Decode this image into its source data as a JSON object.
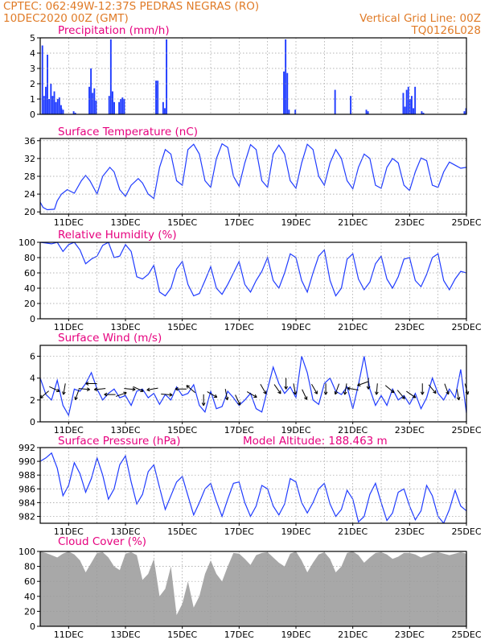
{
  "header": {
    "line1_left": "CPTEC:   062:49W-12:37S   PEDRAS NEGRAS (RO)",
    "line2_left": "10DEC2020 00Z (GMT)",
    "line2_right": "Vertical Grid Line: 00Z",
    "line3_right": "TQ0126L028"
  },
  "colors": {
    "header_text": "#e07b27",
    "panel_title": "#e6007e",
    "series": "#1f3bff",
    "cloud": "#a8a8a8",
    "grid": "#9a9a9a",
    "wind_arrow": "#000000"
  },
  "chart_data": [
    {
      "type": "bar",
      "title": "Precipitation (mm/h)",
      "ylim": [
        0,
        5
      ],
      "yticks": [
        "0",
        "1",
        "2",
        "3",
        "4",
        "5"
      ],
      "grid": true,
      "x_dates": [
        "11DEC",
        "13DEC",
        "15DEC",
        "17DEC",
        "19DEC",
        "21DEC",
        "23DEC",
        "25DEC"
      ],
      "x_dates_shown": false,
      "bursts": [
        {
          "day": 10.05,
          "values": [
            4.5,
            1.2,
            1.8,
            3.9,
            1.0
          ]
        },
        {
          "day": 10.35,
          "values": [
            2.0,
            1.2,
            1.5,
            0.8,
            1.0,
            1.1,
            0.6
          ]
        },
        {
          "day": 10.72,
          "values": [
            0.4,
            0.3
          ]
        },
        {
          "day": 11.15,
          "values": [
            0.2,
            0.1
          ]
        },
        {
          "day": 11.7,
          "values": [
            1.8,
            3.0,
            1.4,
            1.7,
            0.9
          ]
        },
        {
          "day": 12.4,
          "values": [
            1.2,
            4.9,
            1.5,
            0.8
          ]
        },
        {
          "day": 12.75,
          "values": [
            0.8,
            1.0,
            1.1,
            1.0
          ]
        },
        {
          "day": 14.05,
          "values": [
            2.2,
            2.2
          ]
        },
        {
          "day": 14.3,
          "values": [
            0.8,
            0.4,
            4.9
          ]
        },
        {
          "day": 18.55,
          "values": [
            2.8,
            4.9,
            2.7,
            0.3
          ]
        },
        {
          "day": 18.95,
          "values": [
            0.3
          ]
        },
        {
          "day": 20.35,
          "values": [
            1.6
          ]
        },
        {
          "day": 20.9,
          "values": [
            1.2
          ]
        },
        {
          "day": 21.45,
          "values": [
            0.3,
            0.2
          ]
        },
        {
          "day": 22.75,
          "values": [
            1.4,
            0.5,
            1.6,
            1.8,
            1.0,
            1.2,
            0.4,
            1.8
          ]
        },
        {
          "day": 23.4,
          "values": [
            0.2,
            0.1
          ]
        },
        {
          "day": 24.9,
          "values": [
            0.2,
            0.4
          ]
        }
      ]
    },
    {
      "type": "line",
      "title": "Surface Temperature (nC)",
      "ylim": [
        19.5,
        36.5
      ],
      "yticks": [
        "20",
        "24",
        "28",
        "32",
        "36"
      ],
      "grid": true,
      "x_dates": [
        "11DEC",
        "13DEC",
        "15DEC",
        "17DEC",
        "19DEC",
        "21DEC",
        "23DEC",
        "25DEC"
      ],
      "x_dates_shown": true,
      "x": [
        10.0,
        10.1,
        10.25,
        10.5,
        10.6,
        10.75,
        10.95,
        11.2,
        11.45,
        11.6,
        11.75,
        12.0,
        12.2,
        12.45,
        12.6,
        12.8,
        13.0,
        13.2,
        13.45,
        13.6,
        13.8,
        14.0,
        14.2,
        14.4,
        14.6,
        14.8,
        15.0,
        15.2,
        15.4,
        15.6,
        15.8,
        16.0,
        16.2,
        16.4,
        16.6,
        16.8,
        17.0,
        17.2,
        17.4,
        17.6,
        17.8,
        18.0,
        18.2,
        18.4,
        18.6,
        18.8,
        19.0,
        19.2,
        19.4,
        19.6,
        19.8,
        20.0,
        20.2,
        20.4,
        20.6,
        20.8,
        21.0,
        21.2,
        21.4,
        21.6,
        21.8,
        22.0,
        22.2,
        22.4,
        22.6,
        22.8,
        23.0,
        23.2,
        23.4,
        23.6,
        23.8,
        24.0,
        24.2,
        24.4,
        24.6,
        24.8,
        25.0
      ],
      "y": [
        22.2,
        21.0,
        20.5,
        20.6,
        22.5,
        24.0,
        25.0,
        24.2,
        27.0,
        28.2,
        27.0,
        24.0,
        28.0,
        30.0,
        29.0,
        25.0,
        23.5,
        26.0,
        27.5,
        26.5,
        24.0,
        23.0,
        30.0,
        34.0,
        33.0,
        27.0,
        26.0,
        34.0,
        35.2,
        33.0,
        27.0,
        25.5,
        32.0,
        35.3,
        34.5,
        28.0,
        25.8,
        31.0,
        35.1,
        34.0,
        27.0,
        25.5,
        33.0,
        35.0,
        33.0,
        27.0,
        25.3,
        31.0,
        35.2,
        34.0,
        28.0,
        26.0,
        31.0,
        34.0,
        32.0,
        27.0,
        25.2,
        30.0,
        33.0,
        32.0,
        26.0,
        25.3,
        30.0,
        32.0,
        31.0,
        26.0,
        24.8,
        29.0,
        32.1,
        31.5,
        26.0,
        25.5,
        29.0,
        31.2,
        30.5,
        29.8,
        30.0
      ]
    },
    {
      "type": "line",
      "title": "Relative Humidity (%)",
      "ylim": [
        0,
        100
      ],
      "yticks": [
        "0",
        "20",
        "40",
        "60",
        "80",
        "100"
      ],
      "grid": true,
      "x_dates": [
        "11DEC",
        "13DEC",
        "15DEC",
        "17DEC",
        "19DEC",
        "21DEC",
        "23DEC",
        "25DEC"
      ],
      "x_dates_shown": true,
      "x": [
        10.0,
        10.2,
        10.4,
        10.6,
        10.8,
        11.0,
        11.2,
        11.4,
        11.6,
        11.8,
        12.0,
        12.2,
        12.4,
        12.6,
        12.8,
        13.0,
        13.2,
        13.4,
        13.6,
        13.8,
        14.0,
        14.2,
        14.4,
        14.6,
        14.8,
        15.0,
        15.2,
        15.4,
        15.6,
        15.8,
        16.0,
        16.2,
        16.4,
        16.6,
        16.8,
        17.0,
        17.2,
        17.4,
        17.6,
        17.8,
        18.0,
        18.2,
        18.4,
        18.6,
        18.8,
        19.0,
        19.2,
        19.4,
        19.6,
        19.8,
        20.0,
        20.2,
        20.4,
        20.6,
        20.8,
        21.0,
        21.2,
        21.4,
        21.6,
        21.8,
        22.0,
        22.2,
        22.4,
        22.6,
        22.8,
        23.0,
        23.2,
        23.4,
        23.6,
        23.8,
        24.0,
        24.2,
        24.4,
        24.6,
        24.8,
        25.0
      ],
      "y": [
        100,
        99,
        98,
        100,
        88,
        97,
        100,
        90,
        72,
        78,
        82,
        96,
        100,
        80,
        82,
        97,
        88,
        55,
        52,
        58,
        70,
        35,
        30,
        40,
        65,
        75,
        45,
        30,
        33,
        50,
        68,
        40,
        32,
        45,
        60,
        75,
        45,
        35,
        50,
        62,
        80,
        50,
        40,
        60,
        85,
        80,
        50,
        35,
        60,
        82,
        90,
        50,
        30,
        40,
        78,
        85,
        52,
        38,
        48,
        72,
        82,
        52,
        40,
        55,
        78,
        80,
        50,
        42,
        58,
        80,
        85,
        50,
        38,
        52,
        62,
        60
      ]
    },
    {
      "type": "line",
      "title": "Surface Wind (m/s)",
      "ylim": [
        0,
        7
      ],
      "yticks": [
        "0",
        "2",
        "4",
        "6"
      ],
      "grid": true,
      "x_dates": [
        "11DEC",
        "13DEC",
        "15DEC",
        "17DEC",
        "19DEC",
        "21DEC",
        "23DEC",
        "25DEC"
      ],
      "x_dates_shown": true,
      "x": [
        10.0,
        10.2,
        10.4,
        10.6,
        10.8,
        11.0,
        11.2,
        11.4,
        11.6,
        11.8,
        12.0,
        12.2,
        12.4,
        12.6,
        12.8,
        13.0,
        13.2,
        13.4,
        13.6,
        13.8,
        14.0,
        14.2,
        14.4,
        14.6,
        14.8,
        15.0,
        15.2,
        15.4,
        15.6,
        15.8,
        16.0,
        16.2,
        16.4,
        16.6,
        16.8,
        17.0,
        17.2,
        17.4,
        17.6,
        17.8,
        18.0,
        18.2,
        18.4,
        18.6,
        18.8,
        19.0,
        19.2,
        19.4,
        19.6,
        19.8,
        20.0,
        20.2,
        20.4,
        20.6,
        20.8,
        21.0,
        21.2,
        21.4,
        21.6,
        21.8,
        22.0,
        22.2,
        22.4,
        22.6,
        22.8,
        23.0,
        23.2,
        23.4,
        23.6,
        23.8,
        24.0,
        24.2,
        24.4,
        24.6,
        24.8,
        25.0
      ],
      "y": [
        4.0,
        2.5,
        2.0,
        3.8,
        1.5,
        0.6,
        3.0,
        2.8,
        3.5,
        4.5,
        3.0,
        2.0,
        2.6,
        3.0,
        2.2,
        2.4,
        1.5,
        2.8,
        3.0,
        2.2,
        2.6,
        1.6,
        2.5,
        2.0,
        3.2,
        2.4,
        2.6,
        3.4,
        1.5,
        0.9,
        2.8,
        1.2,
        1.4,
        2.8,
        2.2,
        1.5,
        2.0,
        2.6,
        1.2,
        0.9,
        3.0,
        5.0,
        3.5,
        2.6,
        3.2,
        2.2,
        6.0,
        4.5,
        2.0,
        1.6,
        3.5,
        4.0,
        2.8,
        2.5,
        3.2,
        1.2,
        3.4,
        6.0,
        3.0,
        1.5,
        2.4,
        1.5,
        3.0,
        2.0,
        2.4,
        1.6,
        2.6,
        1.2,
        2.2,
        4.0,
        2.6,
        2.0,
        3.0,
        2.2,
        4.8,
        0.8
      ],
      "arrows": {
        "days": [
          10.15,
          10.5,
          10.85,
          11.3,
          11.55,
          11.8,
          12.1,
          12.45,
          12.85,
          13.15,
          13.45,
          13.95,
          14.45,
          14.95,
          15.3,
          15.75,
          16.05,
          16.55,
          16.95,
          17.45,
          17.85,
          18.35,
          18.65,
          18.95,
          19.3,
          19.65,
          20.05,
          20.45,
          20.75,
          21.0,
          21.35,
          21.55,
          21.85,
          22.3,
          22.7,
          23.05,
          23.45,
          23.8,
          24.3,
          24.7,
          25.0
        ],
        "dir_deg": [
          140,
          25,
          100,
          110,
          5,
          180,
          175,
          180,
          340,
          5,
          25,
          170,
          5,
          180,
          220,
          90,
          30,
          80,
          65,
          30,
          60,
          55,
          90,
          80,
          65,
          60,
          90,
          110,
          100,
          190,
          160,
          90,
          95,
          40,
          50,
          35,
          90,
          50,
          70,
          80,
          75
        ],
        "speed": [
          2.5,
          3.0,
          3.0,
          2.5,
          3.0,
          3.5,
          3.0,
          2.5,
          2.5,
          3.0,
          3.0,
          3.0,
          2.5,
          3.0,
          3.0,
          2.0,
          2.5,
          2.5,
          2.0,
          2.5,
          3.0,
          3.0,
          3.5,
          3.0,
          2.5,
          3.0,
          3.0,
          3.0,
          3.0,
          3.0,
          3.5,
          3.5,
          3.0,
          3.0,
          2.5,
          2.5,
          3.0,
          3.0,
          3.0,
          2.5,
          3.0
        ]
      }
    },
    {
      "type": "line",
      "title": "Surface Pressure (hPa)",
      "annotation": "Model Altitude: 188.463 m",
      "ylim": [
        981,
        992
      ],
      "yticks": [
        "982",
        "984",
        "986",
        "988",
        "990",
        "992"
      ],
      "grid": true,
      "x_dates": [
        "11DEC",
        "13DEC",
        "15DEC",
        "17DEC",
        "19DEC",
        "21DEC",
        "23DEC",
        "25DEC"
      ],
      "x_dates_shown": true,
      "x": [
        10.0,
        10.2,
        10.4,
        10.6,
        10.8,
        11.0,
        11.2,
        11.4,
        11.6,
        11.8,
        12.0,
        12.2,
        12.4,
        12.6,
        12.8,
        13.0,
        13.2,
        13.4,
        13.6,
        13.8,
        14.0,
        14.2,
        14.4,
        14.6,
        14.8,
        15.0,
        15.2,
        15.4,
        15.6,
        15.8,
        16.0,
        16.2,
        16.4,
        16.6,
        16.8,
        17.0,
        17.2,
        17.4,
        17.6,
        17.8,
        18.0,
        18.2,
        18.4,
        18.6,
        18.8,
        19.0,
        19.2,
        19.4,
        19.6,
        19.8,
        20.0,
        20.2,
        20.4,
        20.6,
        20.8,
        21.0,
        21.2,
        21.4,
        21.6,
        21.8,
        22.0,
        22.2,
        22.4,
        22.6,
        22.8,
        23.0,
        23.2,
        23.4,
        23.6,
        23.8,
        24.0,
        24.2,
        24.4,
        24.6,
        24.8,
        25.0
      ],
      "y": [
        990.0,
        990.5,
        991.2,
        989.0,
        985.0,
        986.5,
        989.8,
        988.2,
        985.5,
        987.5,
        990.5,
        988.0,
        984.5,
        986.0,
        989.5,
        990.8,
        987.0,
        983.8,
        985.2,
        988.5,
        989.5,
        986.2,
        983.0,
        985.0,
        987.0,
        987.8,
        985.0,
        982.2,
        984.0,
        986.0,
        986.8,
        984.2,
        982.0,
        984.5,
        986.8,
        987.0,
        984.0,
        982.0,
        983.5,
        986.5,
        986.0,
        983.5,
        982.2,
        983.8,
        987.5,
        987.0,
        984.0,
        982.5,
        984.0,
        986.0,
        986.8,
        983.8,
        982.0,
        983.0,
        985.8,
        984.5,
        981.2,
        982.0,
        985.2,
        986.8,
        984.0,
        981.4,
        982.5,
        985.5,
        986.0,
        983.5,
        981.5,
        982.8,
        986.5,
        985.0,
        982.0,
        981.0,
        983.0,
        985.8,
        983.5,
        982.8
      ]
    },
    {
      "type": "area",
      "title": "Cloud Cover (%)",
      "ylim": [
        0,
        100
      ],
      "yticks": [
        "0",
        "20",
        "40",
        "60",
        "80",
        "100"
      ],
      "grid": true,
      "x_dates": [
        "11DEC",
        "13DEC",
        "15DEC",
        "17DEC",
        "19DEC",
        "21DEC",
        "23DEC",
        "25DEC"
      ],
      "x_dates_shown": true,
      "x": [
        10.0,
        10.2,
        10.4,
        10.6,
        10.8,
        11.0,
        11.2,
        11.4,
        11.6,
        11.8,
        12.0,
        12.2,
        12.4,
        12.6,
        12.8,
        13.0,
        13.2,
        13.4,
        13.6,
        13.8,
        14.0,
        14.2,
        14.4,
        14.6,
        14.8,
        15.0,
        15.2,
        15.4,
        15.6,
        15.8,
        16.0,
        16.2,
        16.4,
        16.6,
        16.8,
        17.0,
        17.2,
        17.4,
        17.6,
        17.8,
        18.0,
        18.2,
        18.4,
        18.6,
        18.8,
        19.0,
        19.2,
        19.4,
        19.6,
        19.8,
        20.0,
        20.2,
        20.4,
        20.6,
        20.8,
        21.0,
        21.2,
        21.4,
        21.6,
        21.8,
        22.0,
        22.2,
        22.4,
        22.6,
        22.8,
        23.0,
        23.2,
        23.4,
        23.6,
        23.8,
        24.0,
        24.2,
        24.4,
        24.6,
        24.8,
        25.0
      ],
      "y": [
        100,
        98,
        95,
        92,
        97,
        100,
        96,
        88,
        72,
        85,
        98,
        99,
        92,
        80,
        75,
        97,
        99,
        95,
        62,
        70,
        90,
        40,
        50,
        80,
        15,
        30,
        60,
        25,
        40,
        70,
        88,
        70,
        60,
        80,
        98,
        97,
        90,
        82,
        95,
        98,
        99,
        92,
        85,
        80,
        97,
        100,
        88,
        72,
        85,
        96,
        99,
        90,
        72,
        80,
        98,
        100,
        95,
        85,
        92,
        98,
        99,
        96,
        90,
        93,
        98,
        98,
        96,
        92,
        95,
        98,
        99,
        97,
        95,
        97,
        99,
        97
      ]
    }
  ]
}
